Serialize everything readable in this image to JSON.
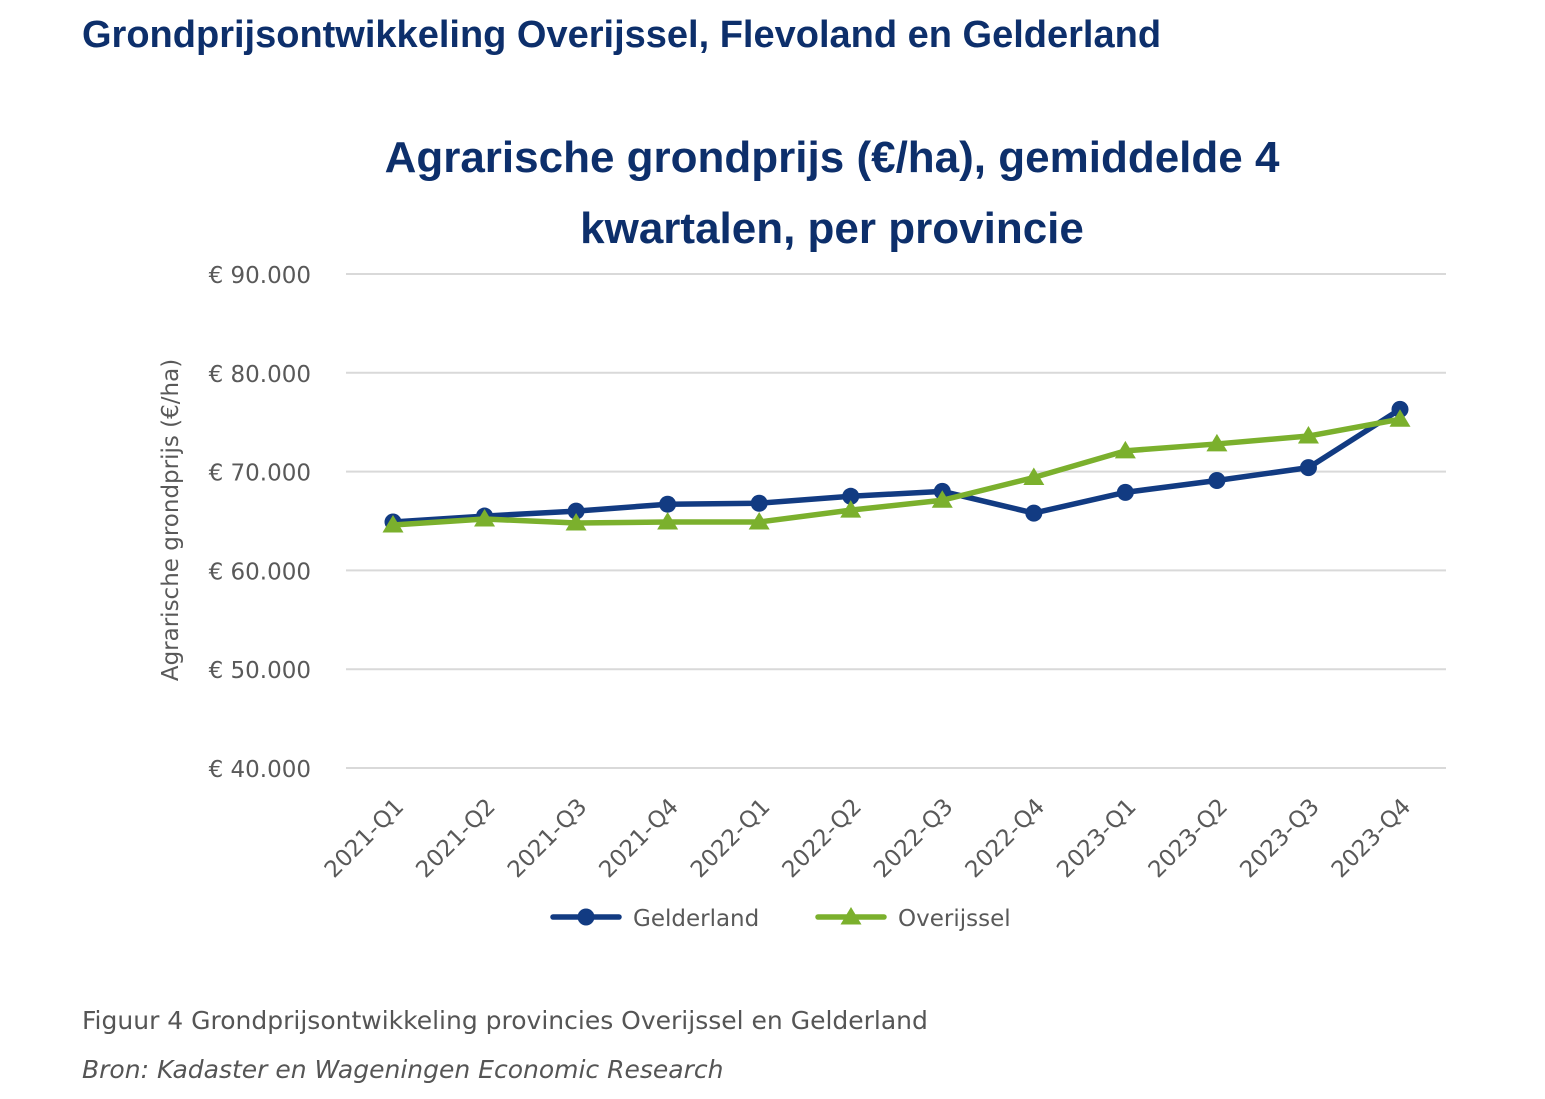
{
  "page_heading": "Grondprijsontwikkeling Overijssel, Flevoland en Gelderland",
  "figure_caption": "Figuur 4 Grondprijsontwikkeling provincies Overijssel en Gelderland",
  "figure_source": "Bron: Kadaster en Wageningen Economic Research",
  "chart_data": {
    "type": "line",
    "title_lines": [
      "Agrarische grondprijs (€/ha), gemiddelde 4",
      "kwartalen, per provincie"
    ],
    "ylabel": "Agrarische grondprijs (€/ha)",
    "xlabel": "",
    "ylim": [
      40000,
      90000
    ],
    "yticks": [
      40000,
      50000,
      60000,
      70000,
      80000,
      90000
    ],
    "ytick_labels": [
      "€ 40.000",
      "€ 50.000",
      "€ 60.000",
      "€ 70.000",
      "€ 80.000",
      "€ 90.000"
    ],
    "grid": true,
    "legend_position": "bottom",
    "categories": [
      "2021-Q1",
      "2021-Q2",
      "2021-Q3",
      "2021-Q4",
      "2022-Q1",
      "2022-Q2",
      "2022-Q3",
      "2022-Q4",
      "2023-Q1",
      "2023-Q2",
      "2023-Q3",
      "2023-Q4"
    ],
    "series": [
      {
        "name": "Gelderland",
        "color": "#123b82",
        "marker": "circle",
        "values": [
          64900,
          65500,
          66000,
          66700,
          66800,
          67500,
          68000,
          65800,
          67900,
          69100,
          70400,
          76300
        ]
      },
      {
        "name": "Overijssel",
        "color": "#7bb02d",
        "marker": "triangle",
        "values": [
          64600,
          65200,
          64800,
          64900,
          64900,
          66100,
          67100,
          69400,
          72100,
          72800,
          73600,
          75300
        ]
      }
    ],
    "colors": {
      "title": "#0d2f6b",
      "axis_text": "#595959",
      "gridline": "#d9d9d9"
    }
  }
}
